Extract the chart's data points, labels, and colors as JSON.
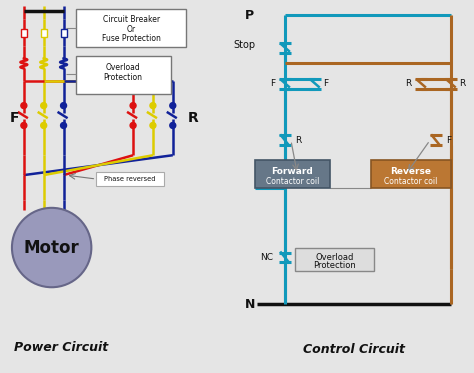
{
  "bg_color": "#e5e5e5",
  "colors": {
    "red": "#dd1111",
    "yellow": "#ddcc00",
    "blue": "#112299",
    "cyan": "#1199bb",
    "brown": "#aa6622",
    "dark": "#111111",
    "white": "#ffffff",
    "gray": "#888888",
    "motor_fill": "#9999bb",
    "fwd_box": "#667788",
    "rev_box": "#bb7733",
    "ol_box": "#dddddd"
  },
  "power_label": "Power Circuit",
  "control_label": "Control Circuit",
  "cb_label1": "Circuit Breaker",
  "cb_label2": "Or",
  "cb_label3": "Fuse Protection",
  "ol_label1": "Overload",
  "ol_label2": "Protection",
  "motor_label": "Motor",
  "phase_reversed": "Phase reversed",
  "stop_label": "Stop",
  "p_label": "P",
  "n_label": "N",
  "nc_label": "NC",
  "f_label": "F",
  "r_label": "R",
  "fwd_coil1": "Forward",
  "fwd_coil2": "Contactor coil",
  "rev_coil1": "Reverse",
  "rev_coil2": "Contactor coil",
  "ctrl_ol1": "Overload",
  "ctrl_ol2": "Protection"
}
